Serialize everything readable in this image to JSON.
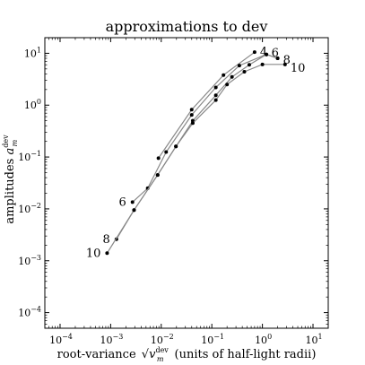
{
  "chart_data": {
    "type": "line",
    "title": "approximations to dev",
    "xlabel_prefix": "root-variance ",
    "xlabel_symbol_root": "v",
    "xlabel_symbol_sub": "m",
    "xlabel_symbol_sup": "dev",
    "xlabel_suffix": " (units of half-light radii)",
    "ylabel_prefix": "amplitudes ",
    "ylabel_symbol_root": "a",
    "ylabel_symbol_sub": "m",
    "ylabel_symbol_sup": "dev",
    "xscale": "log",
    "yscale": "log",
    "xlim": [
      5e-05,
      20
    ],
    "ylim": [
      5e-05,
      20
    ],
    "xticks": [
      {
        "value": 0.0001,
        "base": "10",
        "exp": "−4"
      },
      {
        "value": 0.001,
        "base": "10",
        "exp": "−3"
      },
      {
        "value": 0.01,
        "base": "10",
        "exp": "−2"
      },
      {
        "value": 0.1,
        "base": "10",
        "exp": "−1"
      },
      {
        "value": 1,
        "base": "10",
        "exp": "0"
      },
      {
        "value": 10,
        "base": "10",
        "exp": "1"
      }
    ],
    "yticks": [
      {
        "value": 0.0001,
        "base": "10",
        "exp": "−4"
      },
      {
        "value": 0.001,
        "base": "10",
        "exp": "−3"
      },
      {
        "value": 0.01,
        "base": "10",
        "exp": "−2"
      },
      {
        "value": 0.1,
        "base": "10",
        "exp": "−1"
      },
      {
        "value": 1,
        "base": "10",
        "exp": "0"
      },
      {
        "value": 10,
        "base": "10",
        "exp": "1"
      }
    ],
    "line_color": "#888888",
    "marker_color": "#000000",
    "series": [
      {
        "name": "4",
        "points": [
          [
            0.0088,
            0.095
          ],
          [
            0.04,
            0.82
          ],
          [
            0.17,
            3.8
          ],
          [
            0.7,
            10.5
          ]
        ]
      },
      {
        "name": "6",
        "points": [
          [
            0.0027,
            0.0135
          ],
          [
            0.0054,
            0.025
          ],
          [
            0.0125,
            0.125
          ],
          [
            0.04,
            0.65
          ],
          [
            0.12,
            2.2
          ],
          [
            0.35,
            5.8
          ],
          [
            1.2,
            9.5
          ],
          [
            2.0,
            8.0
          ]
        ]
      },
      {
        "name": "8",
        "points": [
          [
            0.0013,
            0.0026
          ],
          [
            0.0029,
            0.0095
          ],
          [
            0.0085,
            0.045
          ],
          [
            0.0195,
            0.16
          ],
          [
            0.042,
            0.5
          ],
          [
            0.12,
            1.55
          ],
          [
            0.25,
            3.5
          ],
          [
            0.55,
            6.0
          ],
          [
            1.2,
            9.5
          ],
          [
            2.0,
            8.0
          ]
        ]
      },
      {
        "name": "10",
        "points": [
          [
            0.00085,
            0.0014
          ],
          [
            0.0029,
            0.0095
          ],
          [
            0.0085,
            0.045
          ],
          [
            0.0195,
            0.16
          ],
          [
            0.042,
            0.45
          ],
          [
            0.12,
            1.25
          ],
          [
            0.2,
            2.5
          ],
          [
            0.44,
            4.4
          ],
          [
            1.0,
            6.1
          ],
          [
            2.8,
            6.1
          ]
        ]
      }
    ]
  }
}
